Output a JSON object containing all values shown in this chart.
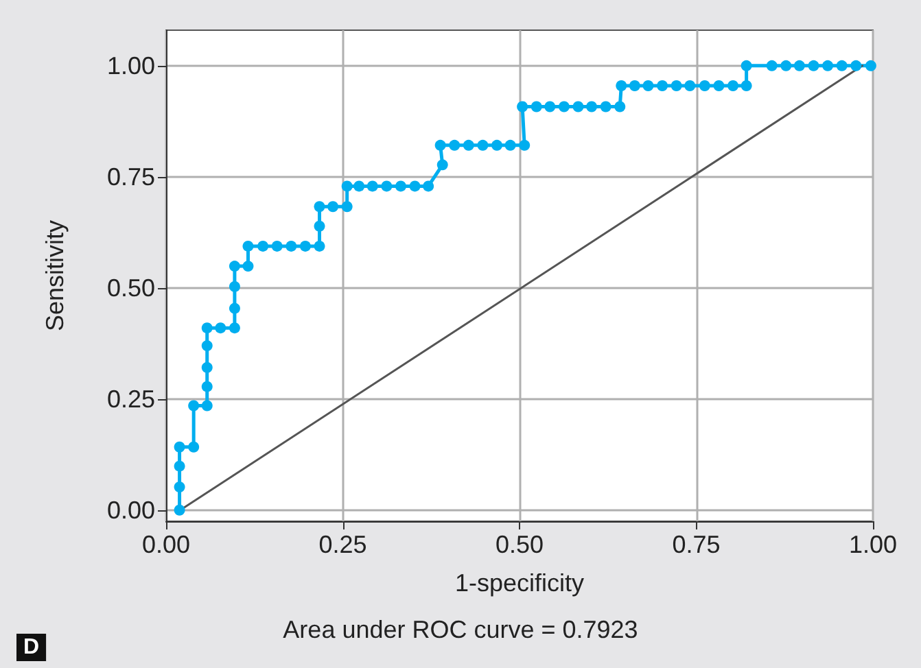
{
  "chart_data": {
    "type": "line",
    "xlabel": "1-specificity",
    "ylabel": "Sensitivity",
    "annotations": [
      "Area under ROC curve = 0.7923",
      "D"
    ],
    "xlim": [
      0,
      1
    ],
    "ylim": [
      -0.025,
      1.08
    ],
    "xticks": [
      {
        "value": 0,
        "label": "0.00"
      },
      {
        "value": 0.25,
        "label": "0.25"
      },
      {
        "value": 0.5,
        "label": "0.50"
      },
      {
        "value": 0.75,
        "label": "0.75"
      },
      {
        "value": 1,
        "label": "1.00"
      }
    ],
    "yticks": [
      {
        "value": 0,
        "label": "0.00"
      },
      {
        "value": 0.25,
        "label": "0.25"
      },
      {
        "value": 0.5,
        "label": "0.50"
      },
      {
        "value": 0.75,
        "label": "0.75"
      },
      {
        "value": 1,
        "label": "1.00"
      }
    ],
    "grid": true,
    "series": [
      {
        "color": "#00aeef",
        "marker": "circle",
        "x": [
          0.019,
          0.019,
          0.019,
          0.019,
          0.039,
          0.039,
          0.058,
          0.058,
          0.058,
          0.058,
          0.058,
          0.077,
          0.097,
          0.097,
          0.097,
          0.097,
          0.116,
          0.116,
          0.137,
          0.157,
          0.177,
          0.197,
          0.217,
          0.217,
          0.217,
          0.236,
          0.256,
          0.256,
          0.273,
          0.292,
          0.312,
          0.332,
          0.352,
          0.371,
          0.391,
          0.388,
          0.408,
          0.428,
          0.448,
          0.468,
          0.487,
          0.507,
          0.504,
          0.524,
          0.543,
          0.563,
          0.583,
          0.602,
          0.622,
          0.642,
          0.644,
          0.663,
          0.682,
          0.702,
          0.722,
          0.741,
          0.762,
          0.782,
          0.802,
          0.821,
          0.821,
          0.857,
          0.877,
          0.896,
          0.916,
          0.936,
          0.956,
          0.976,
          0.997
        ],
        "values": [
          0,
          0.052,
          0.099,
          0.142,
          0.142,
          0.235,
          0.235,
          0.278,
          0.321,
          0.37,
          0.41,
          0.41,
          0.41,
          0.454,
          0.503,
          0.549,
          0.549,
          0.594,
          0.594,
          0.594,
          0.594,
          0.594,
          0.594,
          0.639,
          0.683,
          0.683,
          0.683,
          0.729,
          0.729,
          0.729,
          0.729,
          0.729,
          0.729,
          0.729,
          0.777,
          0.821,
          0.821,
          0.821,
          0.821,
          0.821,
          0.821,
          0.821,
          0.908,
          0.908,
          0.908,
          0.908,
          0.908,
          0.908,
          0.908,
          0.908,
          0.955,
          0.955,
          0.955,
          0.955,
          0.955,
          0.955,
          0.955,
          0.955,
          0.955,
          0.955,
          1,
          1,
          1,
          1,
          1,
          1,
          1,
          1,
          1
        ]
      },
      {
        "color": "#555555",
        "marker": "none",
        "x": [
          0.02,
          0.985
        ],
        "values": [
          0,
          1
        ]
      }
    ]
  }
}
